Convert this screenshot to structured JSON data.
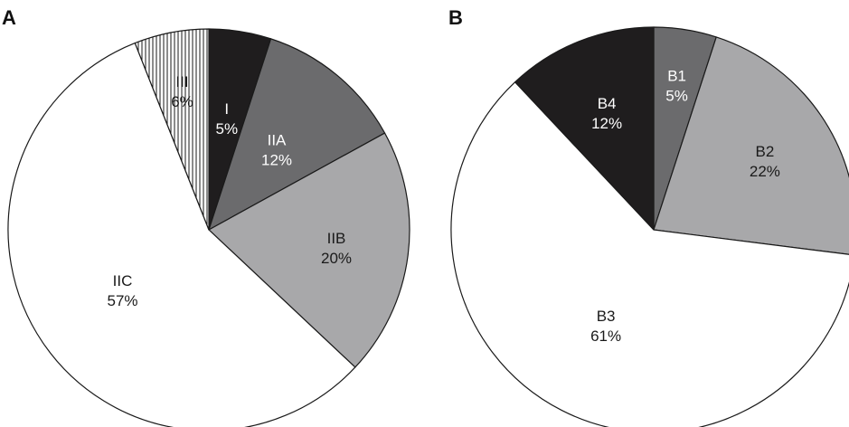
{
  "chart_data": [
    {
      "type": "pie",
      "panel_label": "A",
      "slices": [
        {
          "label": "I",
          "value": 5,
          "value_text": "5%",
          "color": "#1f1d1e",
          "text_color": "#ffffff",
          "pattern": "solid"
        },
        {
          "label": "IIA",
          "value": 12,
          "value_text": "12%",
          "color": "#6b6b6d",
          "text_color": "#ffffff",
          "pattern": "solid"
        },
        {
          "label": "IIB",
          "value": 20,
          "value_text": "20%",
          "color": "#a8a8aa",
          "text_color": "#1a1a1a",
          "pattern": "solid"
        },
        {
          "label": "IIC",
          "value": 57,
          "value_text": "57%",
          "color": "#ffffff",
          "text_color": "#1a1a1a",
          "pattern": "solid"
        },
        {
          "label": "III",
          "value": 6,
          "value_text": "6%",
          "color": "#ffffff",
          "text_color": "#1a1a1a",
          "pattern": "vertical-stripes"
        }
      ],
      "start": "12 o'clock",
      "direction": "clockwise"
    },
    {
      "type": "pie",
      "panel_label": "B",
      "slices": [
        {
          "label": "B1",
          "value": 5,
          "value_text": "5%",
          "color": "#6b6b6d",
          "text_color": "#ffffff",
          "pattern": "solid"
        },
        {
          "label": "B2",
          "value": 22,
          "value_text": "22%",
          "color": "#a8a8aa",
          "text_color": "#1a1a1a",
          "pattern": "solid"
        },
        {
          "label": "B3",
          "value": 61,
          "value_text": "61%",
          "color": "#ffffff",
          "text_color": "#1a1a1a",
          "pattern": "solid"
        },
        {
          "label": "B4",
          "value": 12,
          "value_text": "12%",
          "color": "#1f1d1e",
          "text_color": "#ffffff",
          "pattern": "solid"
        }
      ],
      "start": "12 o'clock",
      "direction": "clockwise"
    }
  ]
}
